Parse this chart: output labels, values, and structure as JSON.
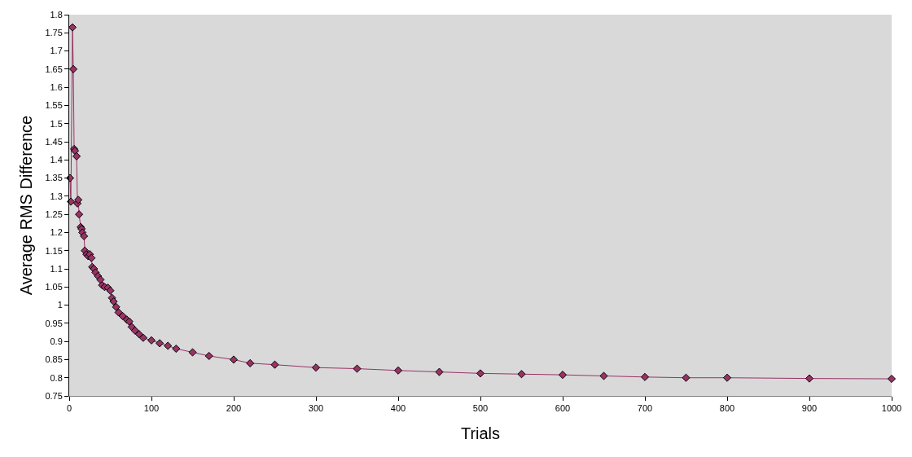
{
  "chart_data": {
    "type": "line",
    "xlabel": "Trials",
    "ylabel": "Average RMS Difference",
    "marker": "diamond",
    "xlim": [
      0,
      1000
    ],
    "xticks": [
      0,
      100,
      200,
      300,
      400,
      500,
      600,
      700,
      800,
      900,
      1000
    ],
    "ylim": [
      0.75,
      1.8
    ],
    "yticks": [
      0.75,
      0.8,
      0.85,
      0.9,
      0.95,
      1,
      1.05,
      1.1,
      1.15,
      1.2,
      1.25,
      1.3,
      1.35,
      1.4,
      1.45,
      1.5,
      1.55,
      1.6,
      1.65,
      1.7,
      1.75,
      1.8
    ],
    "x": [
      1,
      2,
      4,
      5,
      6,
      7,
      9,
      10,
      11,
      12,
      14,
      15,
      16,
      18,
      19,
      21,
      23,
      25,
      27,
      28,
      30,
      32,
      35,
      38,
      40,
      43,
      47,
      50,
      52,
      54,
      57,
      60,
      65,
      70,
      73,
      76,
      80,
      85,
      90,
      100,
      110,
      120,
      130,
      150,
      170,
      200,
      220,
      250,
      300,
      350,
      400,
      450,
      500,
      550,
      600,
      650,
      700,
      750,
      800,
      900,
      1000
    ],
    "series": [
      {
        "color": "#993366",
        "values": [
          1.35,
          1.285,
          1.765,
          1.65,
          1.43,
          1.425,
          1.41,
          1.28,
          1.29,
          1.25,
          1.215,
          1.21,
          1.2,
          1.19,
          1.15,
          1.14,
          1.135,
          1.14,
          1.13,
          1.105,
          1.1,
          1.09,
          1.08,
          1.07,
          1.055,
          1.05,
          1.048,
          1.04,
          1.02,
          1.01,
          0.995,
          0.98,
          0.97,
          0.96,
          0.955,
          0.94,
          0.93,
          0.92,
          0.91,
          0.903,
          0.895,
          0.888,
          0.88,
          0.87,
          0.86,
          0.85,
          0.84,
          0.836,
          0.828,
          0.825,
          0.82,
          0.816,
          0.812,
          0.81,
          0.808,
          0.805,
          0.802,
          0.8,
          0.8,
          0.798,
          0.797
        ]
      }
    ]
  }
}
